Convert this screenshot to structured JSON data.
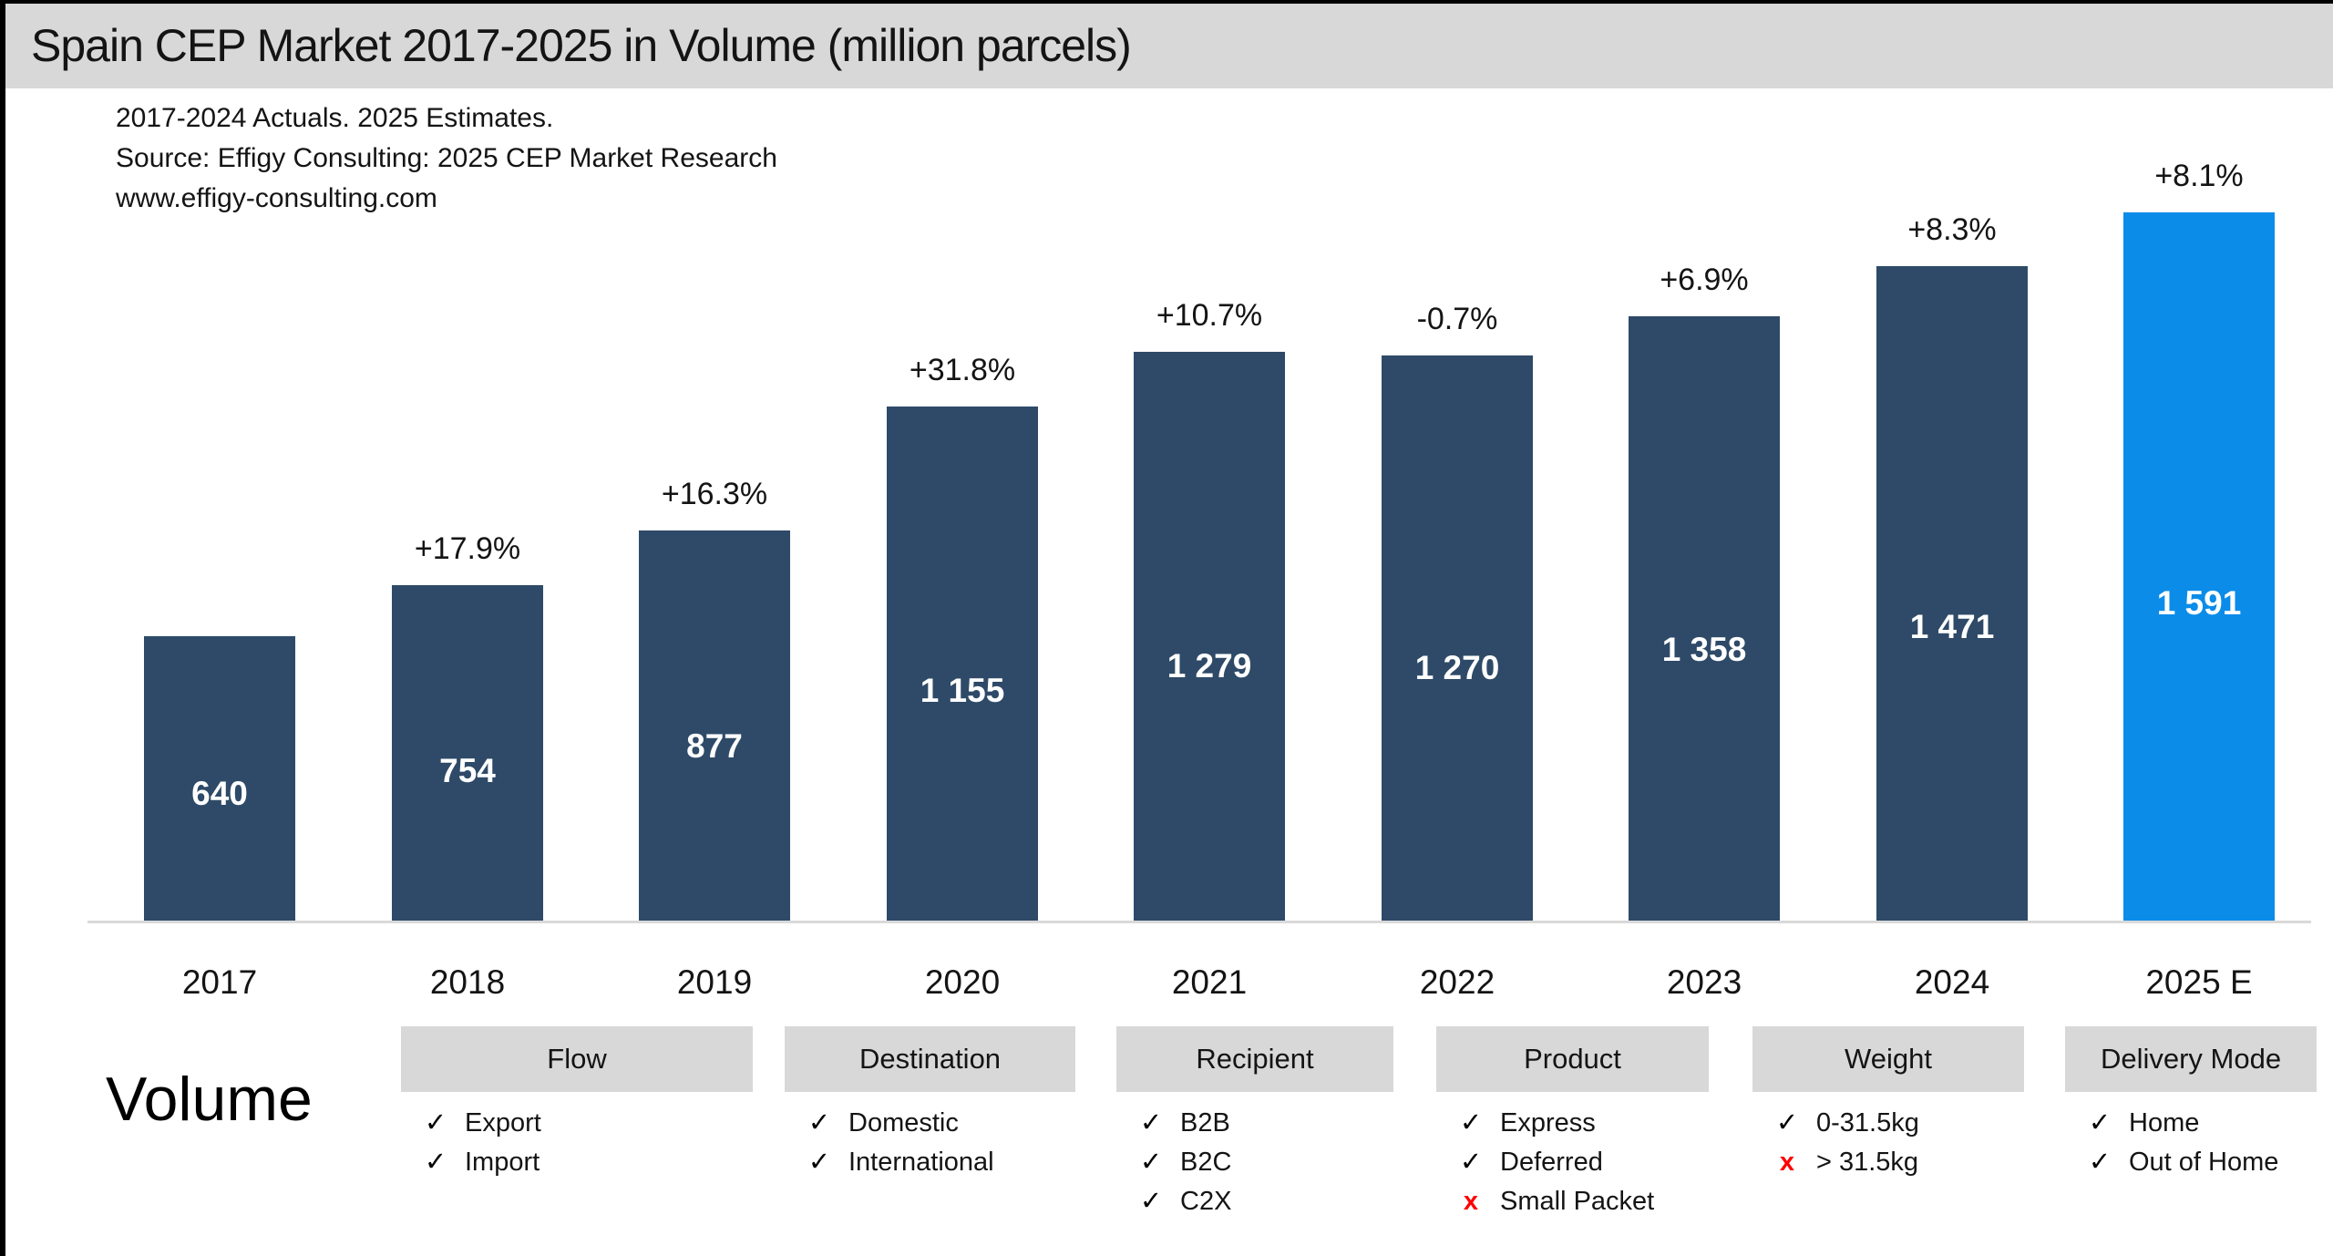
{
  "title": "Spain CEP Market 2017-2025 in Volume (million parcels)",
  "subtitle_lines": [
    "2017-2024 Actuals. 2025 Estimates.",
    "Source: Effigy Consulting: 2025 CEP Market Research",
    "www.effigy-consulting.com"
  ],
  "volume_label": "Volume",
  "chart_data": {
    "type": "bar",
    "title": "Spain CEP Market 2017-2025 in Volume (million parcels)",
    "note": "2017-2024 Actuals. 2025 Estimates.",
    "source": "Effigy Consulting: 2025 CEP Market Research",
    "unit": "million parcels",
    "categories": [
      "2017",
      "2018",
      "2019",
      "2020",
      "2021",
      "2022",
      "2023",
      "2024",
      "2025 E"
    ],
    "values": [
      640,
      754,
      877,
      1155,
      1279,
      1270,
      1358,
      1471,
      1591
    ],
    "value_labels": [
      "640",
      "754",
      "877",
      "1 155",
      "1 279",
      "1 270",
      "1 358",
      "1 471",
      "1 591"
    ],
    "growth_labels": [
      "",
      "+17.9%",
      "+16.3%",
      "+31.8%",
      "+10.7%",
      "-0.7%",
      "+6.9%",
      "+8.3%",
      "+8.1%"
    ],
    "estimate_index": 8,
    "ylim": [
      0,
      1700
    ],
    "grid": false,
    "legend": "none",
    "bar_color_actual": "#2e4a68",
    "bar_color_estimate": "#0b8ce9"
  },
  "segmentation": {
    "check_glyph": "✓",
    "cross_glyph": "x",
    "groups": [
      {
        "title": "Flow",
        "items": [
          {
            "label": "Export",
            "included": true
          },
          {
            "label": "Import",
            "included": true
          }
        ]
      },
      {
        "title": "Destination",
        "items": [
          {
            "label": "Domestic",
            "included": true
          },
          {
            "label": "International",
            "included": true
          }
        ]
      },
      {
        "title": "Recipient",
        "items": [
          {
            "label": "B2B",
            "included": true
          },
          {
            "label": "B2C",
            "included": true
          },
          {
            "label": "C2X",
            "included": true
          }
        ]
      },
      {
        "title": "Product",
        "items": [
          {
            "label": "Express",
            "included": true
          },
          {
            "label": "Deferred",
            "included": true
          },
          {
            "label": "Small Packet",
            "included": false
          }
        ]
      },
      {
        "title": "Weight",
        "items": [
          {
            "label": "0-31.5kg",
            "included": true
          },
          {
            "label": "> 31.5kg",
            "included": false
          }
        ]
      },
      {
        "title": "Delivery Mode",
        "items": [
          {
            "label": "Home",
            "included": true
          },
          {
            "label": "Out of Home",
            "included": true
          }
        ]
      }
    ]
  },
  "colors": {
    "title_bar_bg": "#d8d8d8",
    "header_box_bg": "#d8d8d8",
    "bar_actual": "#2e4a68",
    "bar_estimate": "#0b8ce9",
    "cross_red": "#ff0000",
    "axis_line": "#d9d9d9",
    "text": "#141414"
  }
}
